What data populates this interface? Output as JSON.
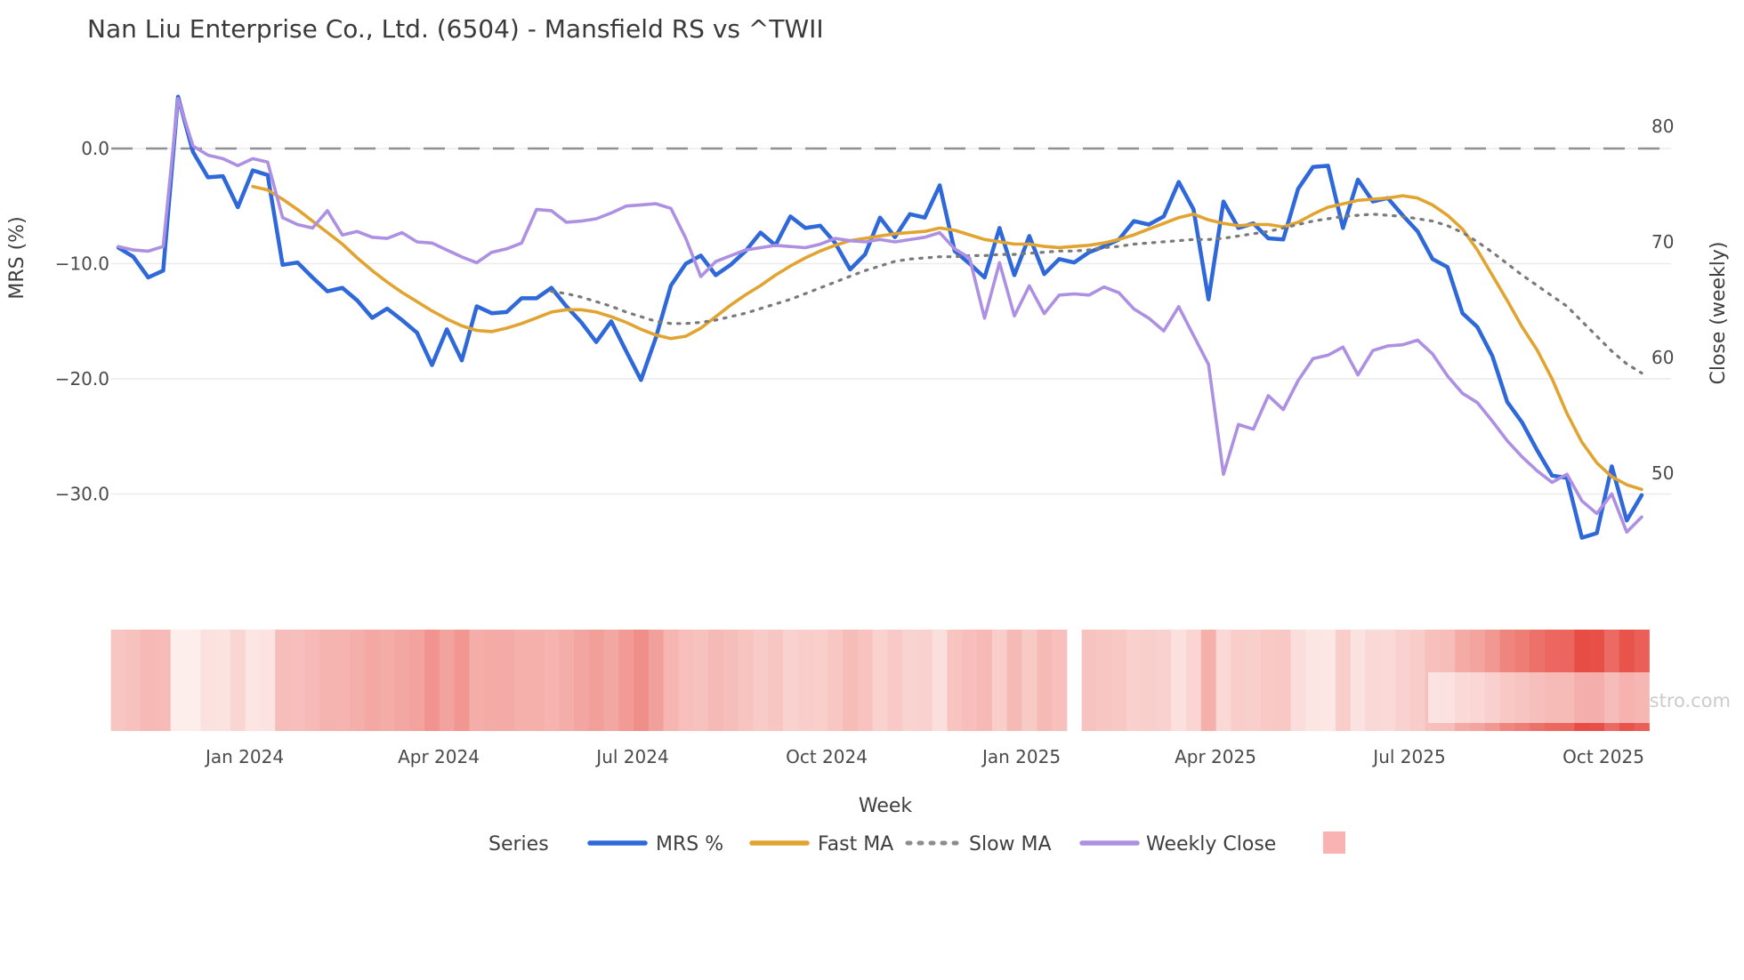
{
  "title": "Nan Liu Enterprise Co., Ltd. (6504) - Mansfield RS vs ^TWII",
  "source_note": "source: sharemaestro.com",
  "axes": {
    "left": {
      "label": "MRS (%)",
      "tick_labels": [
        "0.0",
        "−10.0",
        "−20.0",
        "−30.0"
      ],
      "tick_values": [
        0,
        -10,
        -20,
        -30
      ]
    },
    "right": {
      "label": "Close (weekly)",
      "tick_labels": [
        "80",
        "70",
        "60",
        "50"
      ],
      "tick_values": [
        80,
        70,
        60,
        50
      ]
    },
    "x": {
      "label": "Week",
      "tick_labels": [
        "Jan 2024",
        "Apr 2024",
        "Jul 2024",
        "Oct 2024",
        "Jan 2025",
        "Apr 2025",
        "Jul 2025",
        "Oct 2025"
      ],
      "tick_weeks": [
        8.46,
        21.45,
        34.44,
        47.45,
        60.45,
        73.45,
        86.45,
        99.45
      ]
    }
  },
  "legend": {
    "series_label": "Series",
    "items": [
      {
        "label": "MRS %",
        "swatch": "line",
        "color": "#2e68d9"
      },
      {
        "label": "Fast MA",
        "swatch": "line",
        "color": "#e2a431"
      },
      {
        "label": "Slow MA",
        "swatch": "dotted",
        "color": "#8c8c8c"
      },
      {
        "label": "Weekly Close",
        "swatch": "line",
        "color": "#ad90e2"
      },
      {
        "label": "",
        "swatch": "square",
        "color": "#f9b3b3"
      }
    ]
  },
  "colors": {
    "mrs": "#2e68d9",
    "fast_ma": "#e2a431",
    "slow_ma": "#7a7a7a",
    "weekly_close": "#ad90e2",
    "gridline": "#eaeaef",
    "zero_dash": "#8f8f96",
    "heat_low": "#fdeeec",
    "heat_high": "#e74c44",
    "legend_square": "#f9b3b3",
    "text_dark": "#3a3a3a"
  },
  "chart_data": {
    "type": "line",
    "x_unit": "week_index",
    "weeks": 103,
    "x_range_note": "weekly points, Nov 2023 through Oct 2025",
    "ylim_left": [
      -36,
      6
    ],
    "ylim_right": [
      44.8,
      82
    ],
    "zero_reference_line": true,
    "grid": "horizontal-only",
    "legend_position": "bottom-center",
    "series": [
      {
        "name": "MRS %",
        "axis": "left",
        "style": "solid",
        "color": "#2e68d9",
        "start_week": 0,
        "values": [
          -8.6,
          -9.4,
          -11.2,
          -10.6,
          4.5,
          -0.3,
          -2.5,
          -2.4,
          -5.1,
          -1.9,
          -2.3,
          -10.1,
          -9.9,
          -11.2,
          -12.4,
          -12.1,
          -13.2,
          -14.7,
          -13.9,
          -14.9,
          -16.0,
          -18.8,
          -15.7,
          -18.4,
          -13.7,
          -14.3,
          -14.2,
          -13.0,
          -13.0,
          -12.1,
          -13.7,
          -15.1,
          -16.8,
          -15.0,
          -17.6,
          -20.1,
          -16.4,
          -11.9,
          -10.0,
          -9.3,
          -11.0,
          -10.1,
          -8.9,
          -7.3,
          -8.4,
          -5.9,
          -6.9,
          -6.7,
          -8.2,
          -10.5,
          -9.2,
          -6.0,
          -7.7,
          -5.7,
          -6.0,
          -3.2,
          -8.9,
          -10.0,
          -11.2,
          -6.9,
          -11.0,
          -7.6,
          -10.9,
          -9.6,
          -9.9,
          -9.0,
          -8.5,
          -7.9,
          -6.3,
          -6.6,
          -5.9,
          -2.9,
          -5.3,
          -13.1,
          -4.6,
          -6.9,
          -6.5,
          -7.8,
          -7.9,
          -3.5,
          -1.6,
          -1.5,
          -6.9,
          -2.7,
          -4.6,
          -4.3,
          -5.8,
          -7.2,
          -9.6,
          -10.3,
          -14.3,
          -15.5,
          -18.0,
          -22.0,
          -23.8,
          -26.2,
          -28.4,
          -28.6,
          -33.8,
          -33.4,
          -27.6,
          -32.3,
          -30.1
        ]
      },
      {
        "name": "Fast MA",
        "axis": "left",
        "style": "solid",
        "color": "#e2a431",
        "start_week": 9,
        "values": [
          -3.3,
          -3.6,
          -4.4,
          -5.3,
          -6.3,
          -7.3,
          -8.3,
          -9.5,
          -10.6,
          -11.6,
          -12.5,
          -13.3,
          -14.1,
          -14.8,
          -15.4,
          -15.8,
          -15.9,
          -15.6,
          -15.2,
          -14.7,
          -14.2,
          -14.0,
          -14.0,
          -14.2,
          -14.6,
          -15.1,
          -15.7,
          -16.2,
          -16.5,
          -16.3,
          -15.6,
          -14.6,
          -13.6,
          -12.7,
          -11.9,
          -11.0,
          -10.2,
          -9.5,
          -8.9,
          -8.4,
          -8.0,
          -7.8,
          -7.6,
          -7.4,
          -7.3,
          -7.2,
          -6.9,
          -7.1,
          -7.5,
          -7.9,
          -8.1,
          -8.3,
          -8.3,
          -8.5,
          -8.6,
          -8.5,
          -8.4,
          -8.2,
          -7.9,
          -7.5,
          -7.0,
          -6.5,
          -6.0,
          -5.7,
          -6.2,
          -6.5,
          -6.7,
          -6.6,
          -6.6,
          -6.8,
          -6.4,
          -5.7,
          -5.1,
          -4.8,
          -4.5,
          -4.4,
          -4.3,
          -4.1,
          -4.3,
          -4.9,
          -5.8,
          -7.0,
          -8.8,
          -11.0,
          -13.2,
          -15.5,
          -17.5,
          -20.0,
          -23.0,
          -25.5,
          -27.3,
          -28.5,
          -29.2,
          -29.6
        ]
      },
      {
        "name": "Slow MA",
        "axis": "left",
        "style": "dotted",
        "color": "#7a7a7a",
        "start_week": 29,
        "values": [
          -12.4,
          -12.6,
          -12.9,
          -13.3,
          -13.7,
          -14.2,
          -14.6,
          -15.0,
          -15.2,
          -15.2,
          -15.1,
          -14.9,
          -14.6,
          -14.3,
          -13.9,
          -13.5,
          -13.1,
          -12.6,
          -12.1,
          -11.6,
          -11.1,
          -10.6,
          -10.2,
          -9.8,
          -9.6,
          -9.5,
          -9.4,
          -9.4,
          -9.3,
          -9.3,
          -9.2,
          -9.2,
          -9.1,
          -9.0,
          -8.9,
          -8.9,
          -8.8,
          -8.6,
          -8.5,
          -8.3,
          -8.2,
          -8.1,
          -8.0,
          -7.9,
          -7.9,
          -7.8,
          -7.6,
          -7.4,
          -7.2,
          -6.9,
          -6.6,
          -6.3,
          -6.1,
          -5.9,
          -5.8,
          -5.7,
          -5.8,
          -5.9,
          -6.1,
          -6.3,
          -6.7,
          -7.3,
          -8.1,
          -9.0,
          -10.0,
          -11.0,
          -11.9,
          -12.8,
          -13.7,
          -15.0,
          -16.3,
          -17.6,
          -18.7,
          -19.5
        ]
      },
      {
        "name": "Weekly Close",
        "axis": "right",
        "style": "solid",
        "color": "#ad90e2",
        "start_week": 0,
        "values": [
          69.6,
          69.3,
          69.2,
          69.6,
          82.4,
          78.3,
          77.5,
          77.2,
          76.6,
          77.2,
          76.9,
          72.1,
          71.5,
          71.2,
          72.7,
          70.6,
          70.9,
          70.4,
          70.3,
          70.8,
          70.0,
          69.9,
          69.3,
          68.7,
          68.2,
          69.1,
          69.4,
          69.9,
          72.8,
          72.7,
          71.7,
          71.8,
          72.0,
          72.5,
          73.1,
          73.2,
          73.3,
          72.9,
          70.3,
          67.0,
          68.3,
          68.8,
          69.3,
          69.5,
          69.7,
          69.6,
          69.5,
          69.8,
          70.3,
          70.1,
          70.0,
          70.2,
          70.0,
          70.2,
          70.4,
          70.8,
          69.4,
          68.6,
          63.4,
          68.2,
          63.6,
          66.2,
          63.8,
          65.4,
          65.5,
          65.4,
          66.1,
          65.6,
          64.2,
          63.4,
          62.3,
          64.4,
          61.9,
          59.4,
          49.9,
          54.2,
          53.8,
          56.7,
          55.5,
          58.0,
          59.9,
          60.2,
          60.9,
          58.5,
          60.6,
          61.0,
          61.1,
          61.5,
          60.3,
          58.4,
          56.9,
          56.1,
          54.5,
          52.8,
          51.4,
          50.2,
          49.2,
          49.9,
          47.6,
          46.5,
          48.2,
          44.9,
          46.2
        ]
      }
    ],
    "heatmap_strip": {
      "description": "one cell per week below the chart; red intensity scales with negative MRS %",
      "source_series": "MRS %",
      "value_at_full_red": -34,
      "gap_weeks": [
        64
      ]
    }
  }
}
